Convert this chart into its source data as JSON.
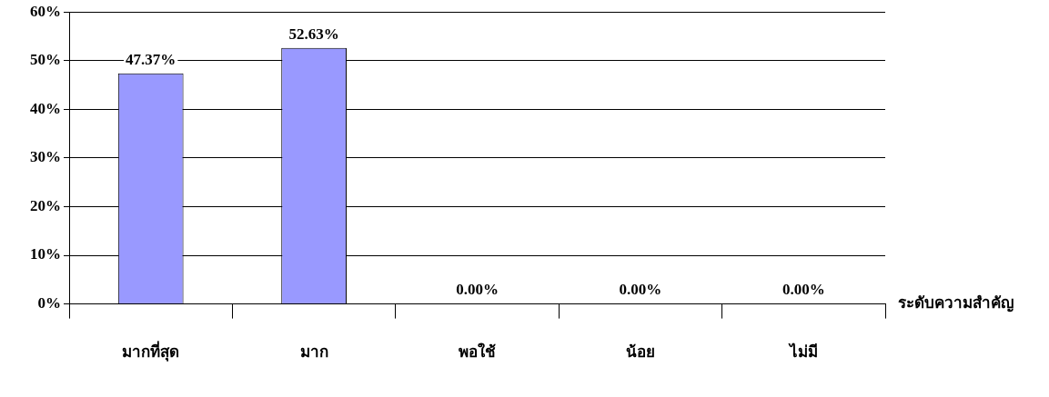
{
  "chart_data": {
    "type": "bar",
    "xlabel": "ระดับความสำคัญ",
    "categories": [
      "มากที่สุด",
      "มาก",
      "พอใช้",
      "น้อย",
      "ไม่มี"
    ],
    "values": [
      47.37,
      52.63,
      0,
      0,
      0
    ],
    "value_labels": [
      "47.37%",
      "52.63%",
      "0.00%",
      "0.00%",
      "0.00%"
    ],
    "color": "#9999ff",
    "ylim": [
      0,
      60
    ],
    "yticks": [
      {
        "value": 0,
        "label": "0%"
      },
      {
        "value": 10,
        "label": "10%"
      },
      {
        "value": 20,
        "label": "20%"
      },
      {
        "value": 30,
        "label": "30%"
      },
      {
        "value": 40,
        "label": "40%"
      },
      {
        "value": 50,
        "label": "50%"
      },
      {
        "value": 60,
        "label": "60%"
      }
    ],
    "grid": "y",
    "legend": false
  }
}
